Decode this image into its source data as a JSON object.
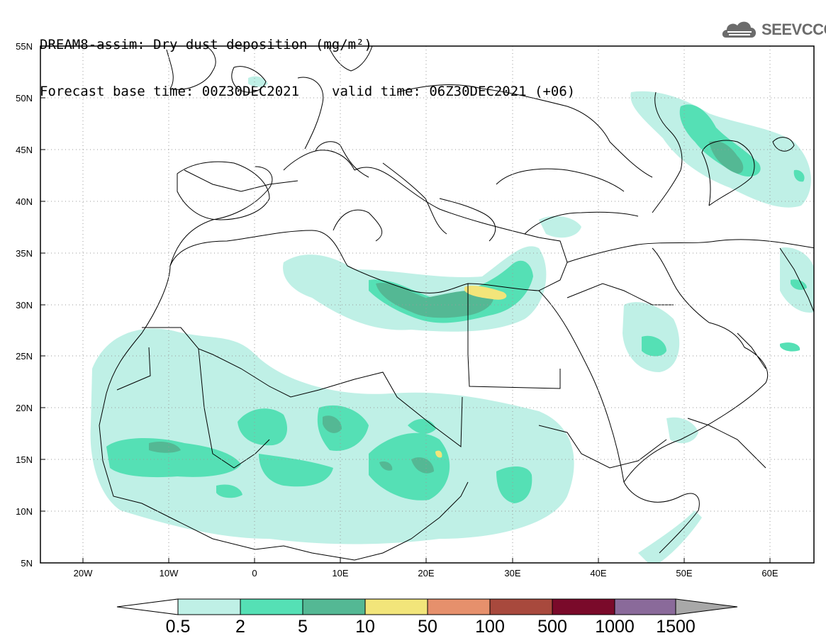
{
  "header": {
    "title": "DREAM8-assim: Dry dust deposition (mg/m²)",
    "base_time": "Forecast base time: 00Z30DEC2021",
    "valid_time": "valid time: 06Z30DEC2021 (+06)"
  },
  "logo": {
    "text": "SEEVCCC",
    "icon": "cloud-icon"
  },
  "map": {
    "lon_labels": [
      "20W",
      "10W",
      "0",
      "10E",
      "20E",
      "30E",
      "40E",
      "50E",
      "60E"
    ],
    "lat_labels": [
      "55N",
      "50N",
      "45N",
      "40N",
      "35N",
      "30N",
      "25N",
      "20N",
      "15N",
      "10N",
      "5N"
    ],
    "lon_range": [
      -25,
      65
    ],
    "lat_range": [
      5,
      55
    ],
    "grid": "dotted"
  },
  "colorbar": {
    "labels": [
      "0.5",
      "2",
      "5",
      "10",
      "50",
      "100",
      "500",
      "1000",
      "1500"
    ],
    "colors": [
      "#bff0e6",
      "#55e0b5",
      "#54b894",
      "#f2e57a",
      "#e6906c",
      "#a8493d",
      "#7a0a2a",
      "#8a6a9a",
      "#a8a8a8"
    ]
  }
}
